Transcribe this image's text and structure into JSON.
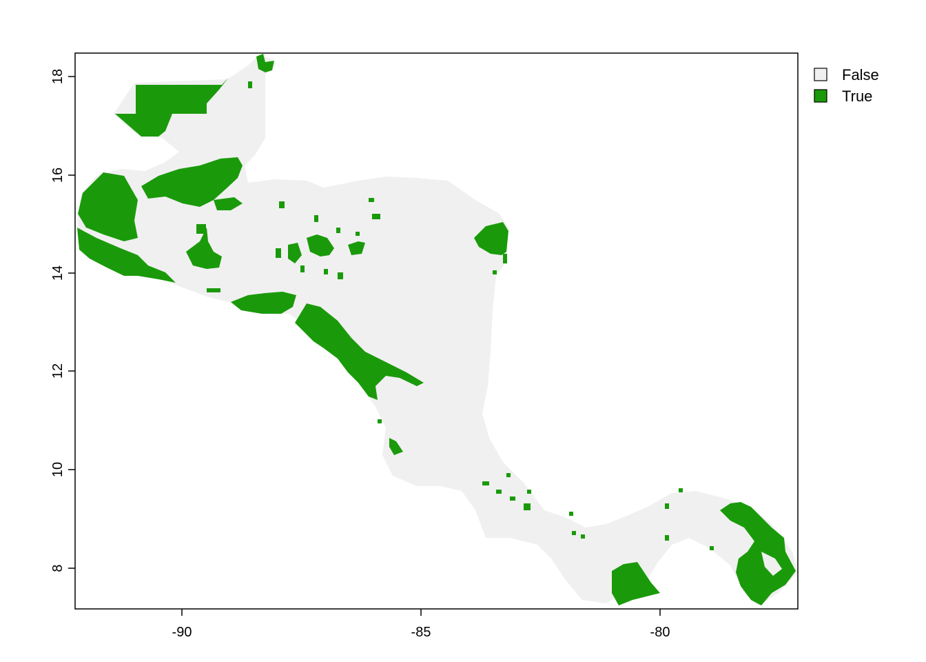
{
  "map": {
    "x_axis": {
      "ticks": [
        "-90",
        "-85",
        "-80"
      ]
    },
    "y_axis": {
      "ticks": [
        "8",
        "10",
        "12",
        "14",
        "16",
        "18"
      ]
    },
    "legend": {
      "entries": [
        {
          "label": "False",
          "color": "#f0f0f0"
        },
        {
          "label": "True",
          "color": "#1a9a0a"
        }
      ]
    },
    "colors": {
      "land_false": "#f0f0f0",
      "land_true": "#1a9a0a",
      "frame": "#000000"
    }
  }
}
